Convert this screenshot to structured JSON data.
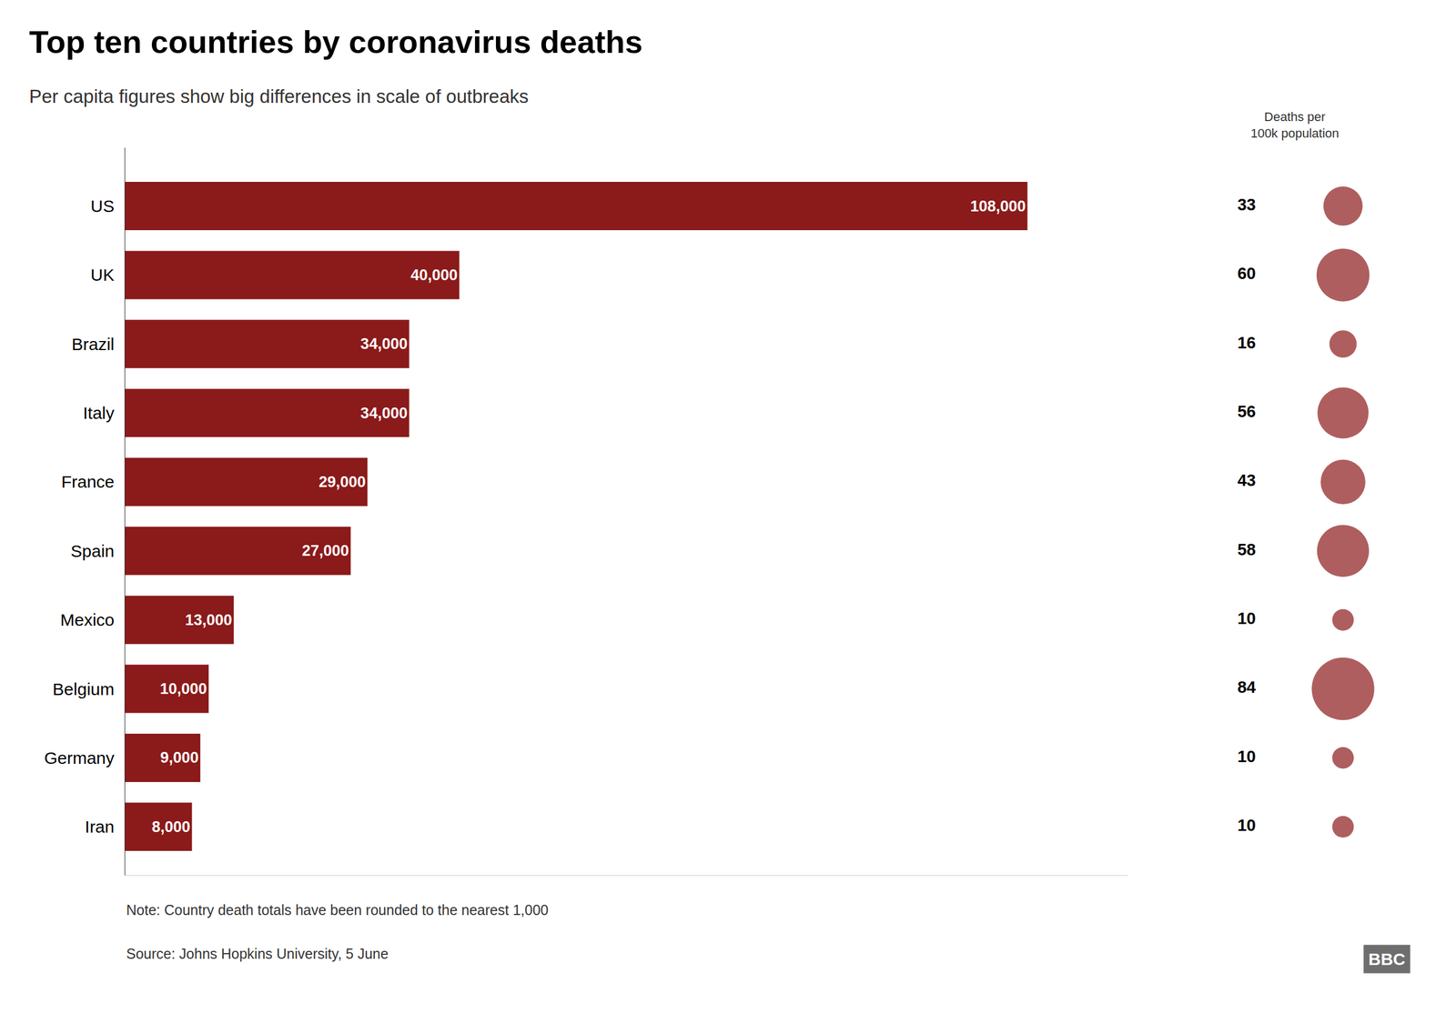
{
  "chart_data": [
    {
      "type": "bar",
      "orientation": "horizontal",
      "title": "Top ten countries by coronavirus deaths",
      "subtitle": "Per capita figures show big differences in scale of outbreaks",
      "categories": [
        "US",
        "UK",
        "Brazil",
        "Italy",
        "France",
        "Spain",
        "Mexico",
        "Belgium",
        "Germany",
        "Iran"
      ],
      "values": [
        108000,
        40000,
        34000,
        34000,
        29000,
        27000,
        13000,
        10000,
        9000,
        8000
      ],
      "value_labels": [
        "108,000",
        "40,000",
        "34,000",
        "34,000",
        "29,000",
        "27,000",
        "13,000",
        "10,000",
        "9,000",
        "8,000"
      ],
      "data_labels": true,
      "color": "#8B1A1A",
      "xlim": [
        0,
        120000
      ],
      "tick_labels": "y",
      "annotations": [
        "Note: Country death totals have been rounded to the nearest 1,000",
        "Source: Johns Hopkins University, 5 June",
        "BBC"
      ]
    },
    {
      "type": "scatter",
      "title": "Deaths per\n100k population",
      "categories": [
        "US",
        "UK",
        "Brazil",
        "Italy",
        "France",
        "Spain",
        "Mexico",
        "Belgium",
        "Germany",
        "Iran"
      ],
      "values": [
        33,
        60,
        16,
        56,
        43,
        58,
        10,
        84,
        10,
        10
      ],
      "data_labels": true,
      "color": "#8B1A1A",
      "tick_labels": false
    }
  ]
}
